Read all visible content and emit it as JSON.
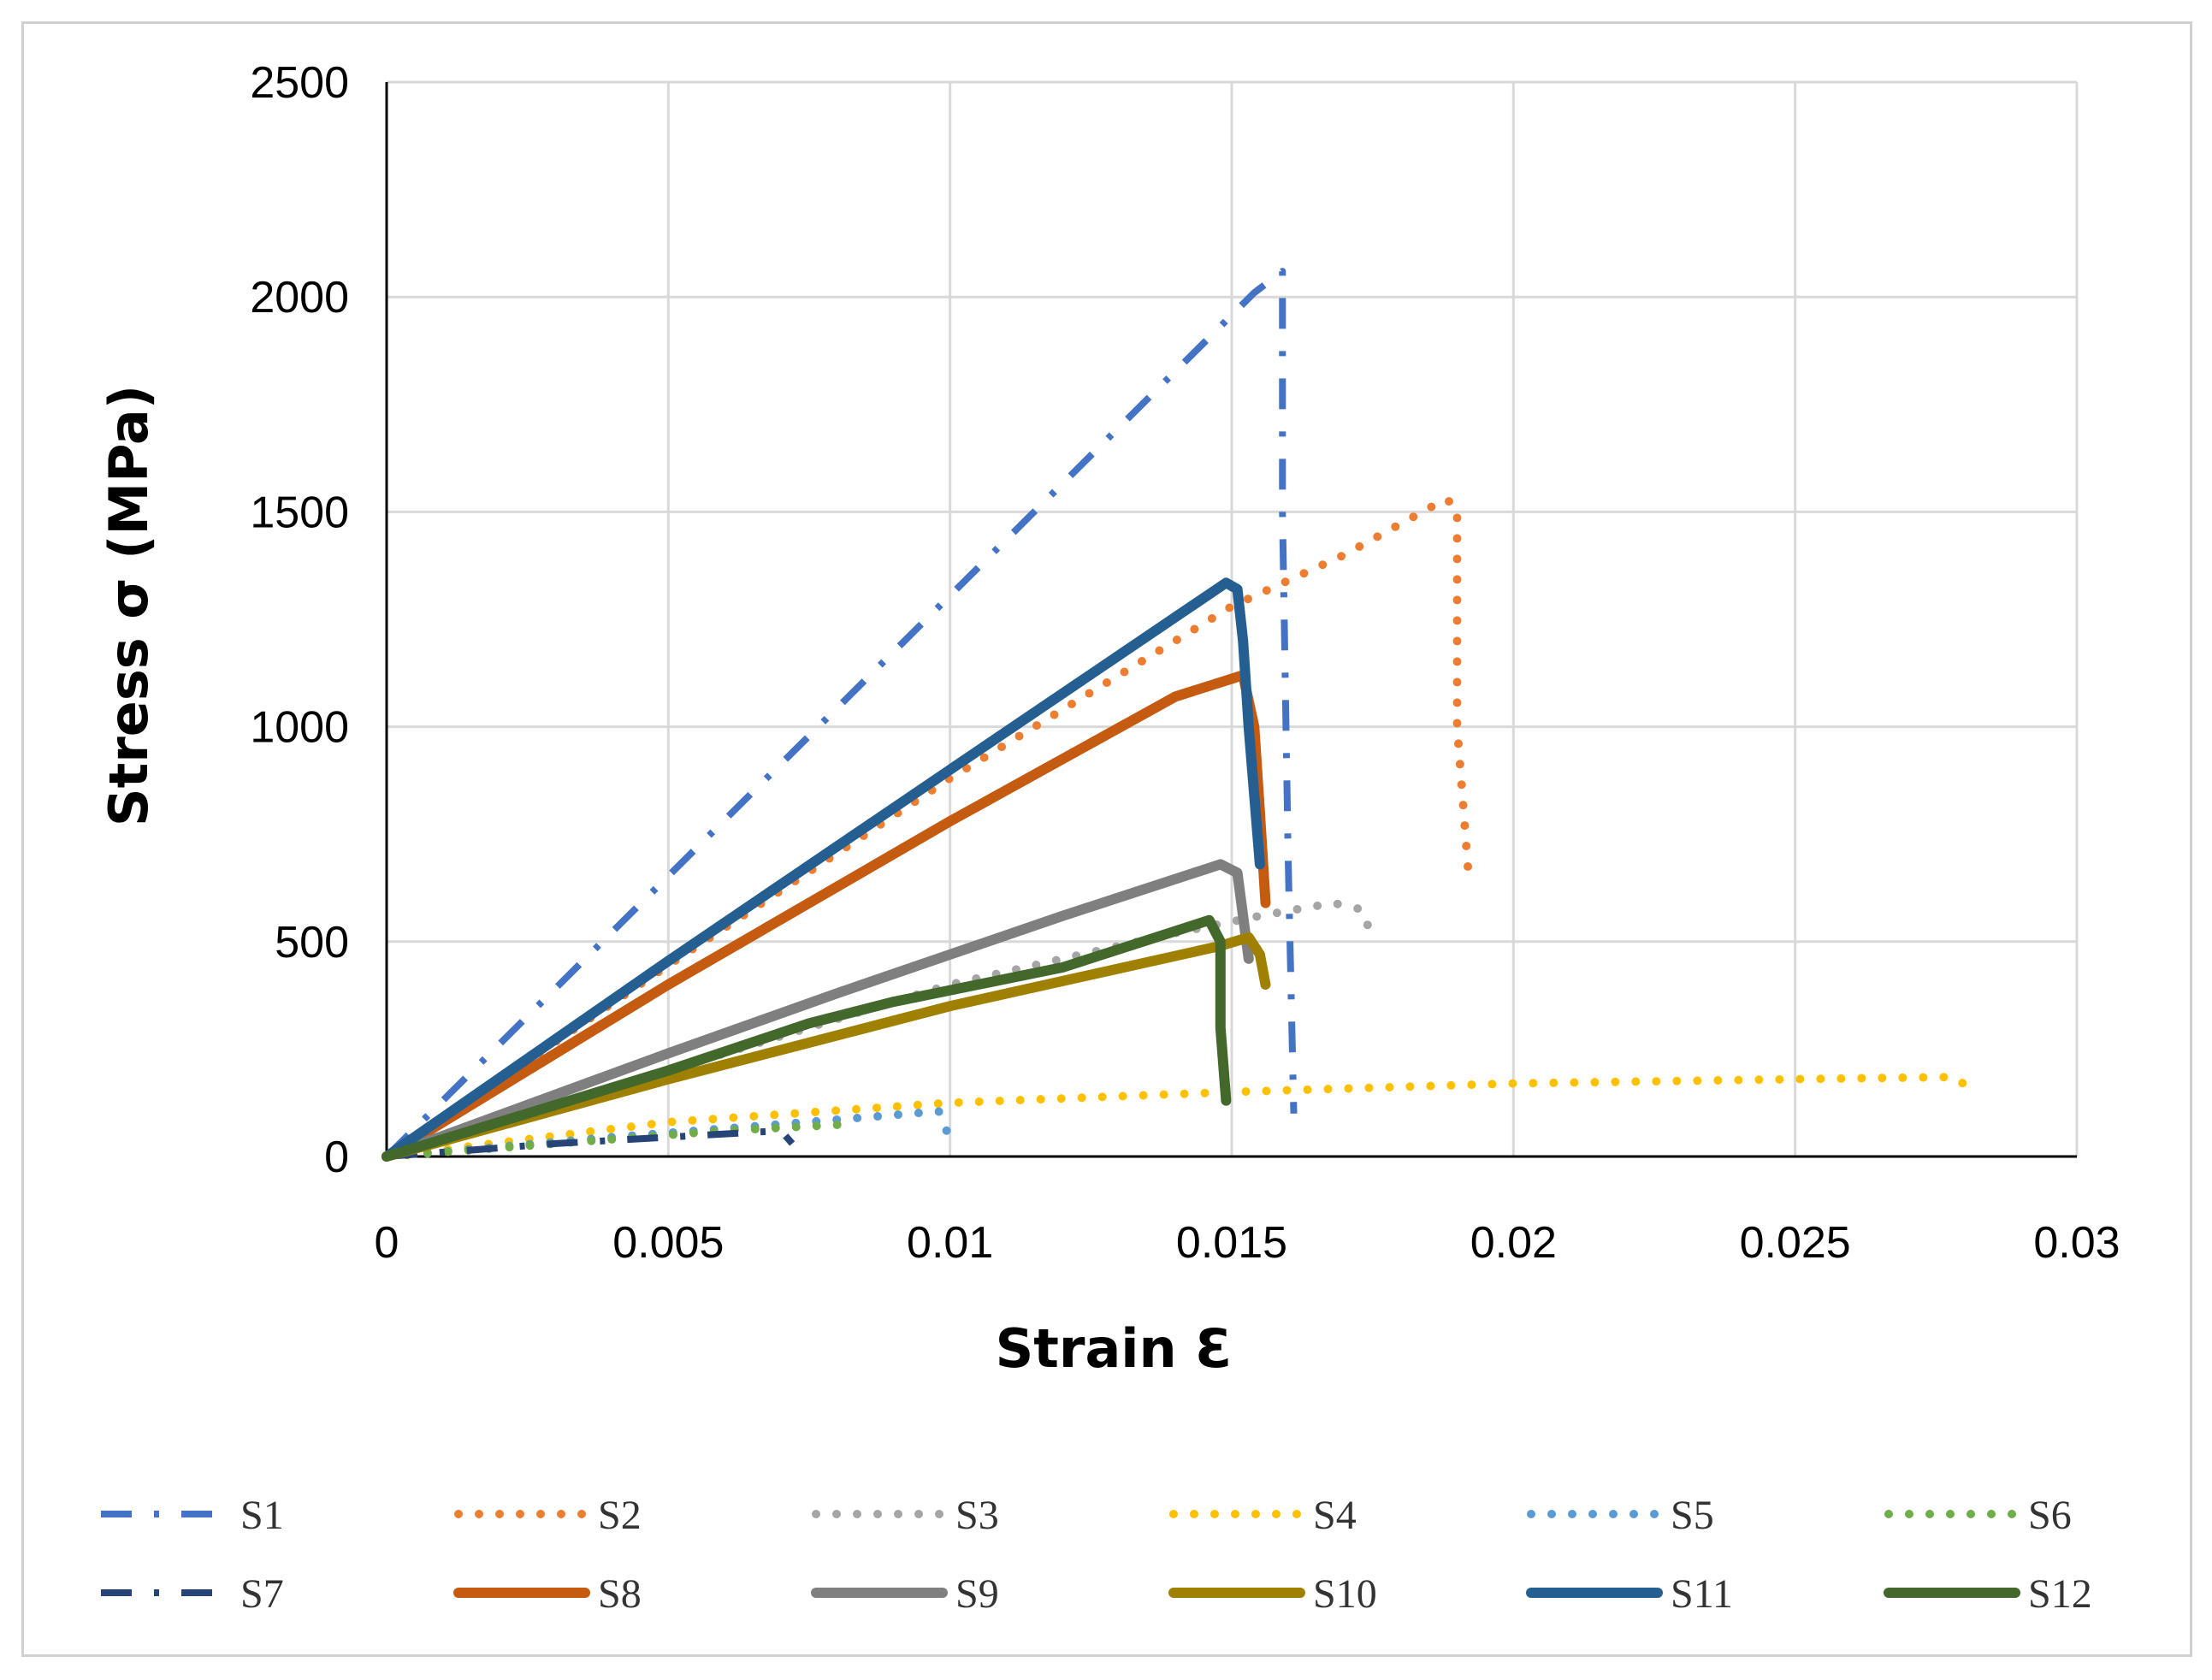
{
  "chart_data": {
    "type": "line",
    "title": "",
    "xlabel": "Strain Ɛ",
    "ylabel": "Stress σ (MPa)",
    "xlim": [
      0,
      0.03
    ],
    "ylim": [
      0,
      2500
    ],
    "x_ticks": [
      0,
      0.005,
      0.01,
      0.015,
      0.02,
      0.025,
      0.03
    ],
    "x_tick_labels": [
      "0",
      "0.005",
      "0.01",
      "0.015",
      "0.02",
      "0.025",
      "0.03"
    ],
    "y_ticks": [
      0,
      500,
      1000,
      1500,
      2000,
      2500
    ],
    "y_tick_labels": [
      "0",
      "500",
      "1000",
      "1500",
      "2000",
      "2500"
    ],
    "grid": true,
    "legend_position": "bottom",
    "series": [
      {
        "name": "S1",
        "color": "#4472C4",
        "style": "dashdot",
        "x": [
          0,
          0.0154,
          0.0159,
          0.0159,
          0.016,
          0.0161
        ],
        "y": [
          0,
          2010,
          2060,
          1500,
          700,
          100
        ]
      },
      {
        "name": "S2",
        "color": "#ED7D31",
        "style": "dotted",
        "x": [
          0,
          0.005,
          0.01,
          0.015,
          0.017,
          0.0188,
          0.019,
          0.019,
          0.0192
        ],
        "y": [
          0,
          445,
          880,
          1280,
          1400,
          1530,
          1510,
          1000,
          660
        ]
      },
      {
        "name": "S3",
        "color": "#A5A5A5",
        "style": "dotted",
        "x": [
          0,
          0.005,
          0.01,
          0.014,
          0.0155,
          0.0168,
          0.0173,
          0.0175
        ],
        "y": [
          0,
          200,
          400,
          520,
          560,
          590,
          575,
          510
        ]
      },
      {
        "name": "S4",
        "color": "#FFC000",
        "style": "dotted",
        "x": [
          0,
          0.005,
          0.01,
          0.015,
          0.02,
          0.025,
          0.0278,
          0.0281
        ],
        "y": [
          0,
          80,
          125,
          150,
          170,
          180,
          185,
          160
        ]
      },
      {
        "name": "S5",
        "color": "#5B9BD5",
        "style": "dotted",
        "x": [
          0,
          0.004,
          0.007,
          0.0098,
          0.01
        ],
        "y": [
          0,
          45,
          75,
          105,
          40
        ]
      },
      {
        "name": "S6",
        "color": "#70AD47",
        "style": "dotted",
        "x": [
          0,
          0.002,
          0.004,
          0.006,
          0.0082
        ],
        "y": [
          0,
          20,
          40,
          60,
          75
        ]
      },
      {
        "name": "S7",
        "color": "#264478",
        "style": "dashdot",
        "x": [
          0,
          0.003,
          0.005,
          0.007,
          0.0072
        ],
        "y": [
          0,
          30,
          45,
          60,
          30
        ]
      },
      {
        "name": "S8",
        "color": "#C55A11",
        "style": "solid",
        "x": [
          0,
          0.005,
          0.01,
          0.014,
          0.0152,
          0.0154,
          0.0155,
          0.0156
        ],
        "y": [
          0,
          400,
          780,
          1070,
          1120,
          1000,
          800,
          590
        ]
      },
      {
        "name": "S9",
        "color": "#7F7F7F",
        "style": "solid",
        "x": [
          0,
          0.005,
          0.008,
          0.012,
          0.0148,
          0.0151,
          0.0152,
          0.0153
        ],
        "y": [
          0,
          240,
          380,
          560,
          680,
          660,
          560,
          460
        ]
      },
      {
        "name": "S10",
        "color": "#A08000",
        "style": "solid",
        "x": [
          0,
          0.005,
          0.01,
          0.0148,
          0.0153,
          0.0155,
          0.0156
        ],
        "y": [
          0,
          180,
          350,
          490,
          510,
          470,
          400
        ]
      },
      {
        "name": "S11",
        "color": "#255E91",
        "style": "solid",
        "x": [
          0,
          0.005,
          0.01,
          0.0149,
          0.0151,
          0.0152,
          0.0153,
          0.0155
        ],
        "y": [
          0,
          455,
          900,
          1335,
          1320,
          1200,
          1000,
          680
        ]
      },
      {
        "name": "S12",
        "color": "#43682B",
        "style": "solid",
        "x": [
          0,
          0.005,
          0.0075,
          0.009,
          0.012,
          0.0146,
          0.0148,
          0.0148,
          0.0149
        ],
        "y": [
          0,
          200,
          310,
          360,
          440,
          550,
          500,
          300,
          130
        ]
      }
    ]
  }
}
